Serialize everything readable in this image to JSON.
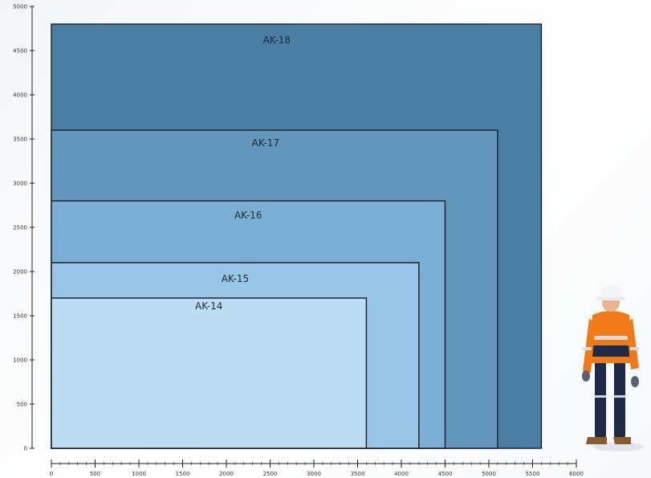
{
  "diagram": {
    "y_axis": {
      "ticks": [
        {
          "value": 0,
          "label": "0"
        },
        {
          "value": 500,
          "label": "500"
        },
        {
          "value": 1000,
          "label": "1000"
        },
        {
          "value": 1500,
          "label": "1500"
        },
        {
          "value": 2000,
          "label": "2000"
        },
        {
          "value": 2500,
          "label": "2500"
        },
        {
          "value": 3000,
          "label": "3000"
        },
        {
          "value": 3500,
          "label": "3500"
        },
        {
          "value": 4000,
          "label": "4000"
        },
        {
          "value": 4500,
          "label": "4500"
        },
        {
          "value": 5000,
          "label": "5000"
        }
      ],
      "max": 5000
    },
    "x_axis": {
      "ticks": [
        {
          "value": 0,
          "label": "0"
        },
        {
          "value": 500,
          "label": "500"
        },
        {
          "value": 1000,
          "label": "1000"
        },
        {
          "value": 1500,
          "label": "1500"
        },
        {
          "value": 2000,
          "label": "2000"
        },
        {
          "value": 2500,
          "label": "2500"
        },
        {
          "value": 3000,
          "label": "3000"
        },
        {
          "value": 3500,
          "label": "3500"
        },
        {
          "value": 4000,
          "label": "4000"
        },
        {
          "value": 4500,
          "label": "4500"
        },
        {
          "value": 5000,
          "label": "5000"
        },
        {
          "value": 5500,
          "label": "5500"
        },
        {
          "value": 6000,
          "label": "6000"
        }
      ],
      "max": 6000
    },
    "sizes": [
      {
        "label": "AK-18",
        "width": 5600,
        "height": 4800,
        "color": "#4a7ea3"
      },
      {
        "label": "AK-17",
        "width": 5100,
        "height": 3600,
        "color": "#6296bb"
      },
      {
        "label": "AK-16",
        "width": 4500,
        "height": 2800,
        "color": "#7aaed2"
      },
      {
        "label": "AK-15",
        "width": 4200,
        "height": 2100,
        "color": "#99c6e6"
      },
      {
        "label": "AK-14",
        "width": 3600,
        "height": 1700,
        "color": "#bcdcf3"
      }
    ]
  }
}
